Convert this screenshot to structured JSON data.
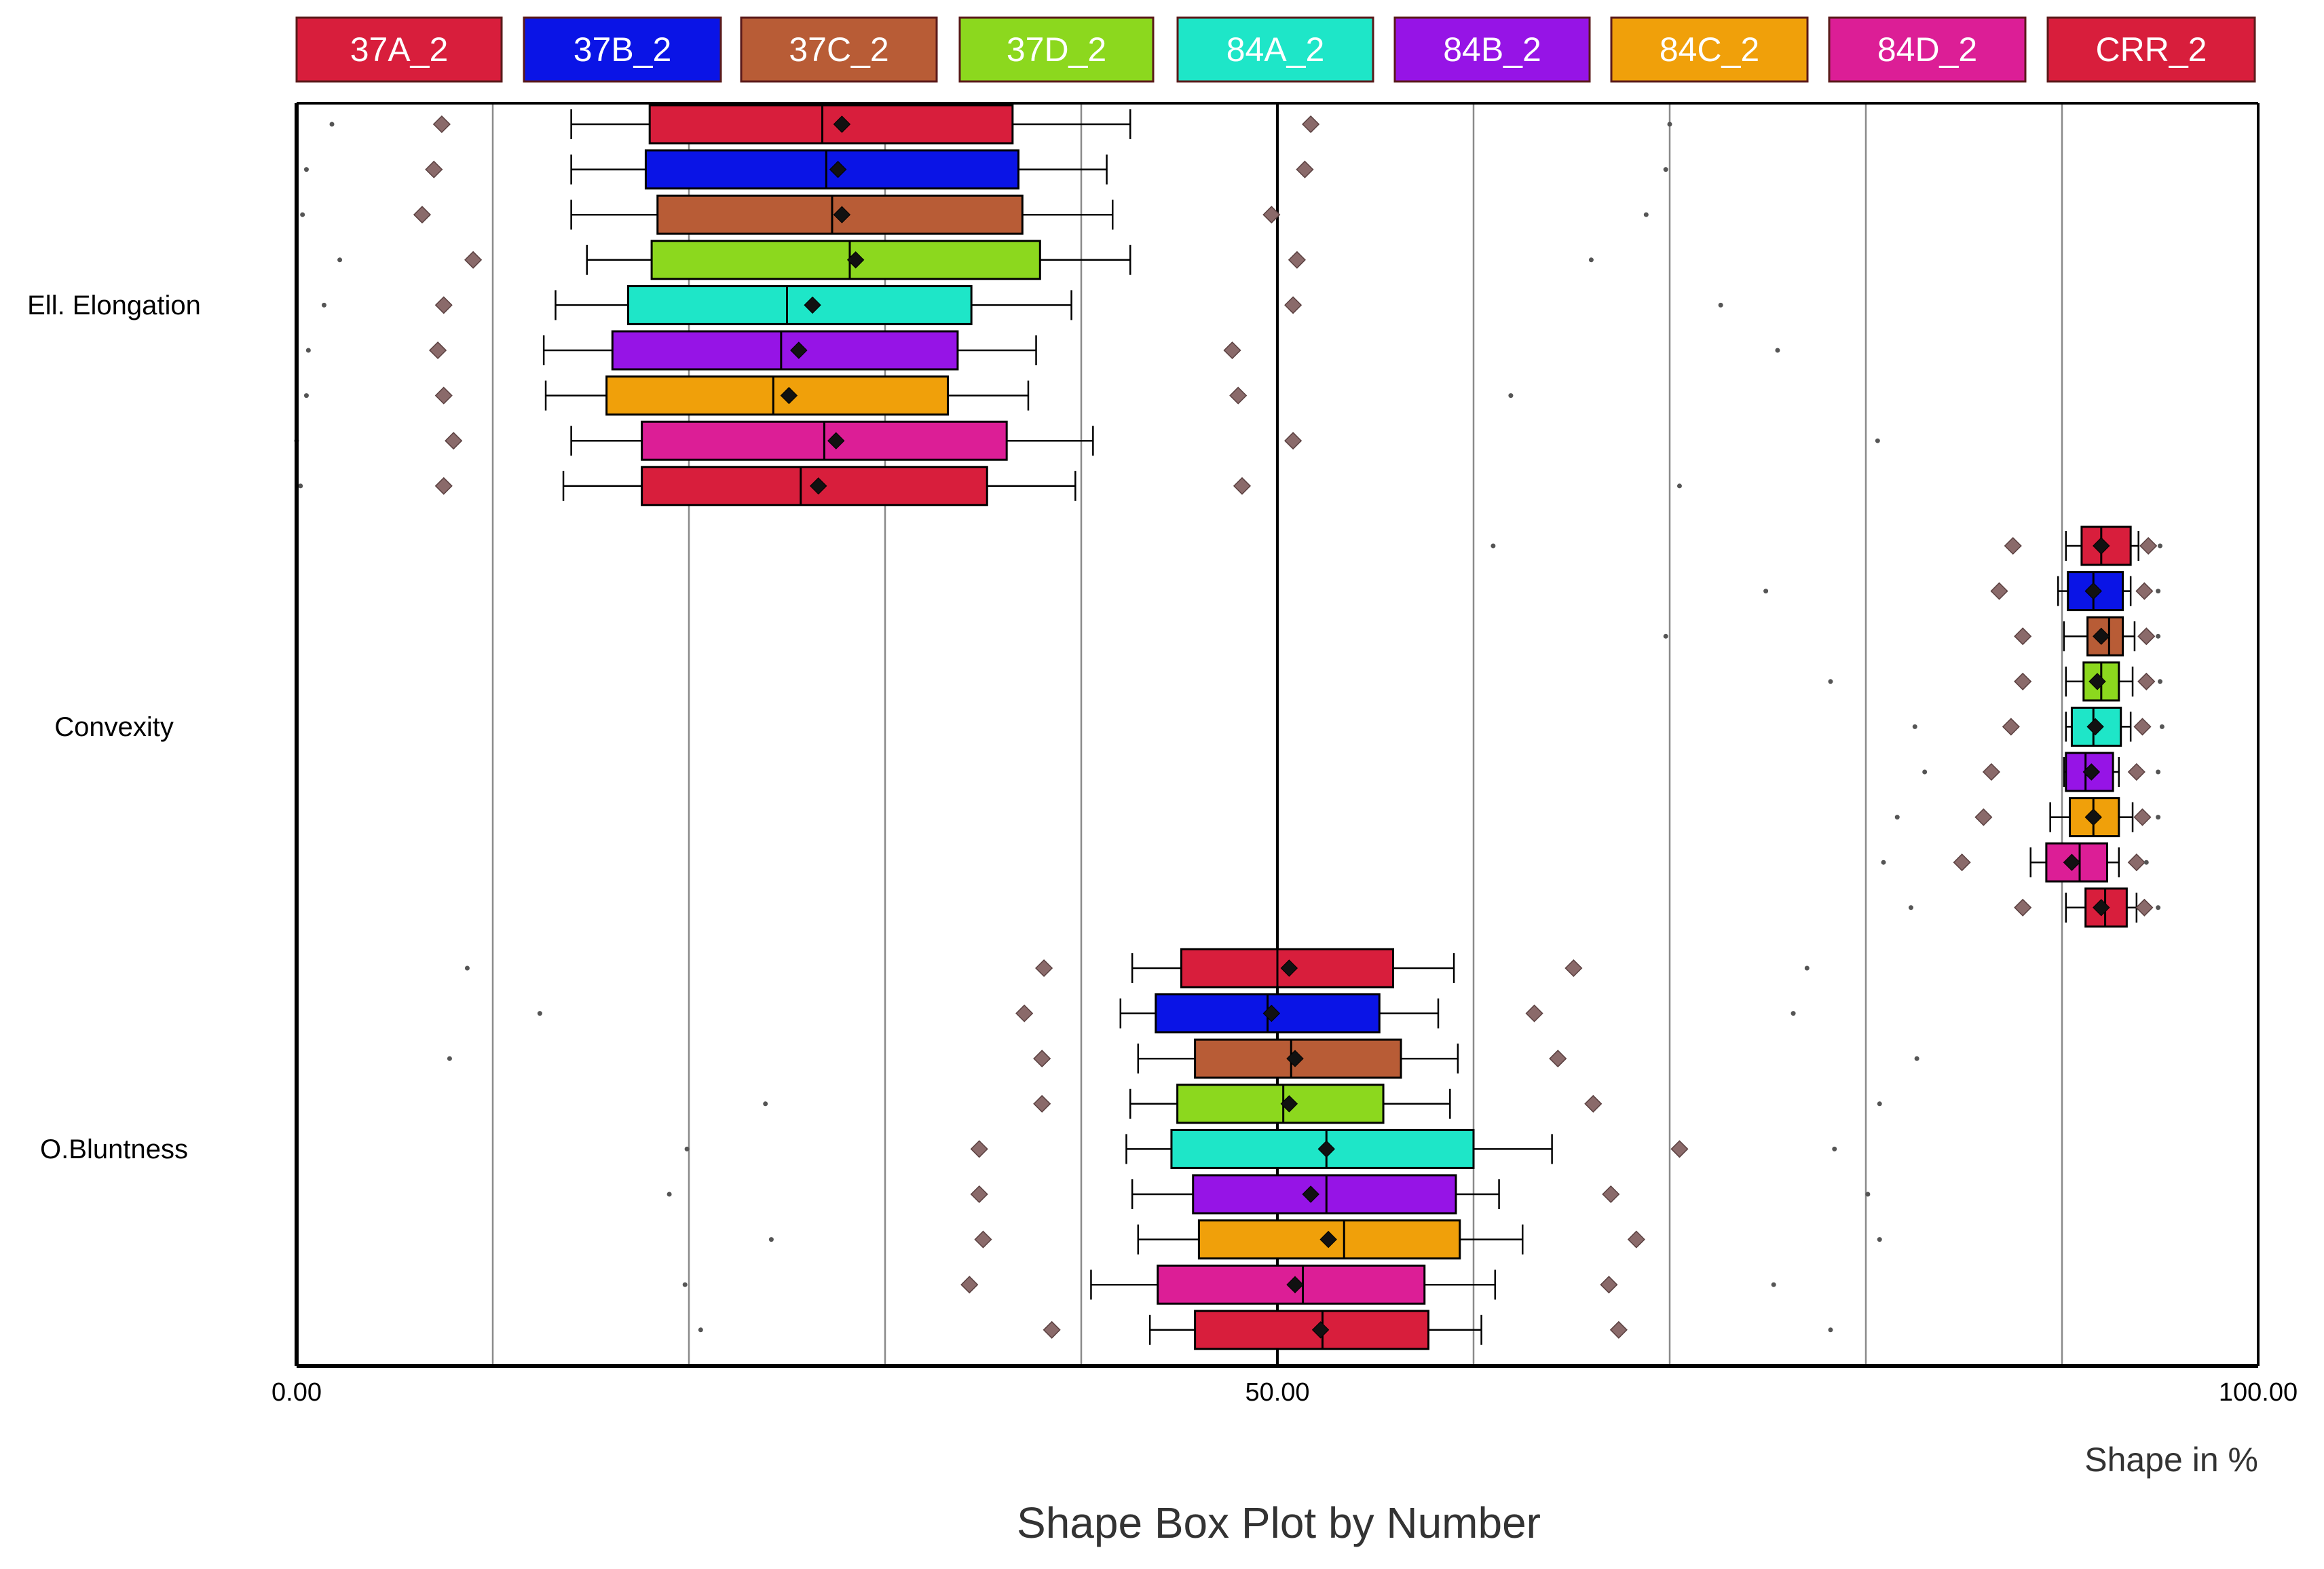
{
  "chart_data": {
    "type": "boxplot",
    "title": "Shape Box Plot by Number",
    "xlabel": "Shape in %",
    "xlim": [
      0,
      100
    ],
    "x_ticks": [
      {
        "value": 0,
        "label": "0.00"
      },
      {
        "value": 50,
        "label": "50.00"
      },
      {
        "value": 100,
        "label": "100.00"
      }
    ],
    "gridlines": [
      10,
      20,
      30,
      40,
      50,
      60,
      70,
      80,
      90
    ],
    "series": [
      {
        "name": "37A_2",
        "color": "#d81e3c"
      },
      {
        "name": "37B_2",
        "color": "#0a14e6"
      },
      {
        "name": "37C_2",
        "color": "#b85c36"
      },
      {
        "name": "37D_2",
        "color": "#8cd81e"
      },
      {
        "name": "84A_2",
        "color": "#1ee6c8"
      },
      {
        "name": "84B_2",
        "color": "#9614e6"
      },
      {
        "name": "84C_2",
        "color": "#f0a00a"
      },
      {
        "name": "84D_2",
        "color": "#dc1e96"
      },
      {
        "name": "CRR_2",
        "color": "#d81e3c"
      }
    ],
    "categories": [
      {
        "name": "Ell. Elongation",
        "boxes": [
          {
            "series": "37A_2",
            "min": 14.0,
            "q1": 18.0,
            "median": 26.8,
            "q3": 36.5,
            "max": 42.5,
            "mean": 27.8,
            "p5": 7.4,
            "p95": 51.7,
            "extremes": [
              1.8,
              70.0
            ]
          },
          {
            "series": "37B_2",
            "min": 14.0,
            "q1": 17.8,
            "median": 27.0,
            "q3": 36.8,
            "max": 41.3,
            "mean": 27.6,
            "p5": 7.0,
            "p95": 51.4,
            "extremes": [
              0.5,
              69.8
            ]
          },
          {
            "series": "37C_2",
            "min": 14.0,
            "q1": 18.4,
            "median": 27.3,
            "q3": 37.0,
            "max": 41.6,
            "mean": 27.8,
            "p5": 6.4,
            "p95": 49.7,
            "extremes": [
              0.3,
              68.8
            ]
          },
          {
            "series": "37D_2",
            "min": 14.8,
            "q1": 18.1,
            "median": 28.2,
            "q3": 37.9,
            "max": 42.5,
            "mean": 28.5,
            "p5": 9.0,
            "p95": 51.0,
            "extremes": [
              2.2,
              66.0
            ]
          },
          {
            "series": "84A_2",
            "min": 13.2,
            "q1": 16.9,
            "median": 25.0,
            "q3": 34.4,
            "max": 39.5,
            "mean": 26.3,
            "p5": 7.5,
            "p95": 50.8,
            "extremes": [
              1.4,
              72.6
            ]
          },
          {
            "series": "84B_2",
            "min": 12.6,
            "q1": 16.1,
            "median": 24.7,
            "q3": 33.7,
            "max": 37.7,
            "mean": 25.6,
            "p5": 7.2,
            "p95": 47.7,
            "extremes": [
              0.6,
              75.5
            ]
          },
          {
            "series": "84C_2",
            "min": 12.7,
            "q1": 15.8,
            "median": 24.3,
            "q3": 33.2,
            "max": 37.3,
            "mean": 25.1,
            "p5": 7.5,
            "p95": 48.0,
            "extremes": [
              0.5,
              61.9
            ]
          },
          {
            "series": "84D_2",
            "min": 14.0,
            "q1": 17.6,
            "median": 26.9,
            "q3": 36.2,
            "max": 40.6,
            "mean": 27.5,
            "p5": 8.0,
            "p95": 50.8,
            "extremes": [
              0.0,
              80.6
            ]
          },
          {
            "series": "CRR_2",
            "min": 13.6,
            "q1": 17.6,
            "median": 25.7,
            "q3": 35.2,
            "max": 39.7,
            "mean": 26.6,
            "p5": 7.5,
            "p95": 48.2,
            "extremes": [
              0.2,
              70.5
            ]
          }
        ]
      },
      {
        "name": "Convexity",
        "boxes": [
          {
            "series": "37A_2",
            "min": 90.2,
            "q1": 91.0,
            "median": 92.0,
            "q3": 93.5,
            "max": 93.9,
            "mean": 92.0,
            "p5": 87.5,
            "p95": 94.4,
            "extremes": [
              61.0,
              95.0
            ]
          },
          {
            "series": "37B_2",
            "min": 89.8,
            "q1": 90.3,
            "median": 91.6,
            "q3": 93.1,
            "max": 93.5,
            "mean": 91.6,
            "p5": 86.8,
            "p95": 94.2,
            "extremes": [
              74.9,
              94.9
            ]
          },
          {
            "series": "37C_2",
            "min": 90.1,
            "q1": 91.3,
            "median": 92.4,
            "q3": 93.1,
            "max": 93.7,
            "mean": 92.0,
            "p5": 88.0,
            "p95": 94.3,
            "extremes": [
              69.8,
              94.9
            ]
          },
          {
            "series": "37D_2",
            "min": 90.2,
            "q1": 91.1,
            "median": 92.0,
            "q3": 92.9,
            "max": 93.6,
            "mean": 91.8,
            "p5": 88.0,
            "p95": 94.3,
            "extremes": [
              78.2,
              95.0
            ]
          },
          {
            "series": "84A_2",
            "min": 90.2,
            "q1": 90.5,
            "median": 91.6,
            "q3": 93.0,
            "max": 93.5,
            "mean": 91.7,
            "p5": 87.4,
            "p95": 94.1,
            "extremes": [
              82.5,
              95.1
            ]
          },
          {
            "series": "84B_2",
            "min": 90.1,
            "q1": 90.2,
            "median": 91.2,
            "q3": 92.6,
            "max": 92.9,
            "mean": 91.5,
            "p5": 86.4,
            "p95": 93.8,
            "extremes": [
              83.0,
              94.9
            ]
          },
          {
            "series": "84C_2",
            "min": 89.4,
            "q1": 90.4,
            "median": 91.6,
            "q3": 92.9,
            "max": 93.6,
            "mean": 91.6,
            "p5": 86.0,
            "p95": 94.1,
            "extremes": [
              81.6,
              94.9
            ]
          },
          {
            "series": "84D_2",
            "min": 88.4,
            "q1": 89.2,
            "median": 90.9,
            "q3": 92.3,
            "max": 92.9,
            "mean": 90.5,
            "p5": 84.9,
            "p95": 93.8,
            "extremes": [
              80.9,
              94.3
            ]
          },
          {
            "series": "CRR_2",
            "min": 90.2,
            "q1": 91.2,
            "median": 92.2,
            "q3": 93.3,
            "max": 93.8,
            "mean": 92.0,
            "p5": 88.0,
            "p95": 94.2,
            "extremes": [
              82.3,
              94.9
            ]
          }
        ]
      },
      {
        "name": "O.Bluntness",
        "boxes": [
          {
            "series": "37A_2",
            "min": 42.6,
            "q1": 45.1,
            "median": 50.0,
            "q3": 55.9,
            "max": 59.0,
            "mean": 50.6,
            "p5": 38.1,
            "p95": 65.1,
            "extremes": [
              8.7,
              77.0
            ]
          },
          {
            "series": "37B_2",
            "min": 42.0,
            "q1": 43.8,
            "median": 49.5,
            "q3": 55.2,
            "max": 58.2,
            "mean": 49.7,
            "p5": 37.1,
            "p95": 63.1,
            "extremes": [
              12.4,
              76.3
            ]
          },
          {
            "series": "37C_2",
            "min": 42.9,
            "q1": 45.8,
            "median": 50.7,
            "q3": 56.3,
            "max": 59.2,
            "mean": 50.9,
            "p5": 38.0,
            "p95": 64.3,
            "extremes": [
              7.8,
              82.6
            ]
          },
          {
            "series": "37D_2",
            "min": 42.5,
            "q1": 44.9,
            "median": 50.3,
            "q3": 55.4,
            "max": 58.8,
            "mean": 50.6,
            "p5": 38.0,
            "p95": 66.1,
            "extremes": [
              23.9,
              80.7
            ]
          },
          {
            "series": "84A_2",
            "min": 42.3,
            "q1": 44.6,
            "median": 52.5,
            "q3": 60.0,
            "max": 64.0,
            "mean": 52.5,
            "p5": 34.8,
            "p95": 70.5,
            "extremes": [
              19.9,
              78.4
            ]
          },
          {
            "series": "84B_2",
            "min": 42.6,
            "q1": 45.7,
            "median": 52.5,
            "q3": 59.1,
            "max": 61.3,
            "mean": 51.7,
            "p5": 34.8,
            "p95": 67.0,
            "extremes": [
              19.0,
              80.1
            ]
          },
          {
            "series": "84C_2",
            "min": 42.9,
            "q1": 46.0,
            "median": 53.4,
            "q3": 59.3,
            "max": 62.5,
            "mean": 52.6,
            "p5": 35.0,
            "p95": 68.3,
            "extremes": [
              24.2,
              80.7
            ]
          },
          {
            "series": "84D_2",
            "min": 40.5,
            "q1": 43.9,
            "median": 51.3,
            "q3": 57.5,
            "max": 61.1,
            "mean": 50.9,
            "p5": 34.3,
            "p95": 66.9,
            "extremes": [
              19.8,
              75.3
            ]
          },
          {
            "series": "CRR_2",
            "min": 43.5,
            "q1": 45.8,
            "median": 52.3,
            "q3": 57.7,
            "max": 60.4,
            "mean": 52.2,
            "p5": 38.5,
            "p95": 67.4,
            "extremes": [
              20.6,
              78.2
            ]
          }
        ]
      }
    ]
  }
}
